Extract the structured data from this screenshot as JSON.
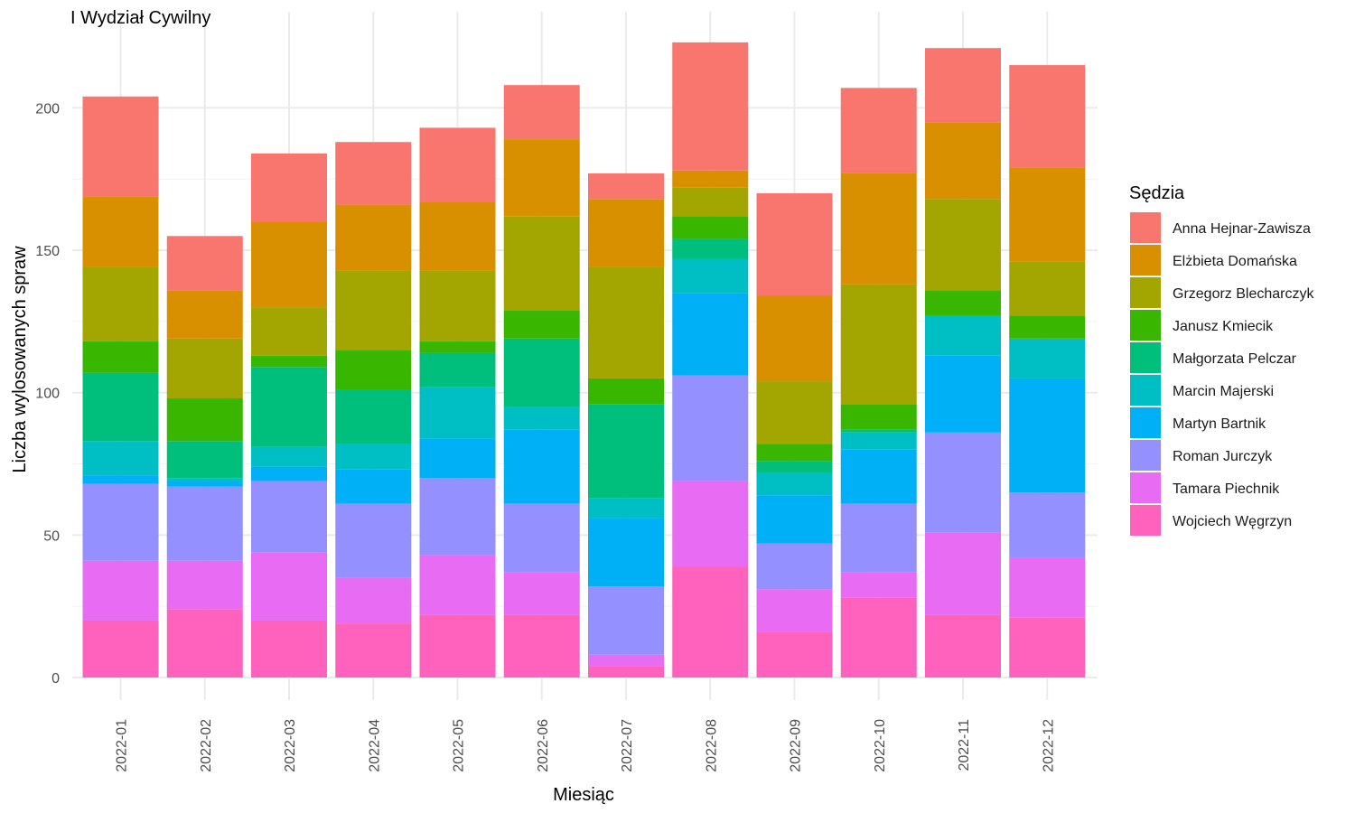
{
  "chart_data": {
    "type": "bar",
    "stacked": true,
    "title": "I Wydział Cywilny",
    "xlabel": "Miesiąc",
    "ylabel": "Liczba wylosowanych spraw",
    "ylim": [
      0,
      223
    ],
    "yticks": [
      0,
      50,
      100,
      150,
      200
    ],
    "grid": true,
    "legend_title": "Sędzia",
    "legend_position": "right",
    "categories": [
      "2022-01",
      "2022-02",
      "2022-03",
      "2022-04",
      "2022-05",
      "2022-06",
      "2022-07",
      "2022-08",
      "2022-09",
      "2022-10",
      "2022-11",
      "2022-12"
    ],
    "series": [
      {
        "name": "Anna Hejnar-Zawisza",
        "color": "#F8766D",
        "values": [
          35,
          19,
          24,
          22,
          26,
          19,
          9,
          45,
          36,
          30,
          26,
          36
        ]
      },
      {
        "name": "Elżbieta Domańska",
        "color": "#D89000",
        "values": [
          25,
          17,
          30,
          23,
          24,
          27,
          24,
          6,
          30,
          39,
          27,
          33
        ]
      },
      {
        "name": "Grzegorz Blecharczyk",
        "color": "#A3A500",
        "values": [
          26,
          21,
          17,
          28,
          25,
          33,
          39,
          10,
          22,
          42,
          32,
          19
        ]
      },
      {
        "name": "Janusz Kmiecik",
        "color": "#39B600",
        "values": [
          11,
          15,
          4,
          14,
          4,
          10,
          9,
          8,
          6,
          9,
          9,
          8
        ]
      },
      {
        "name": "Małgorzata Pelczar",
        "color": "#00BF7D",
        "values": [
          24,
          13,
          28,
          19,
          12,
          24,
          33,
          7,
          4,
          1,
          0,
          0
        ]
      },
      {
        "name": "Marcin Majerski",
        "color": "#00BFC4",
        "values": [
          12,
          1,
          7,
          9,
          18,
          8,
          7,
          12,
          8,
          6,
          14,
          14
        ]
      },
      {
        "name": "Martyn Bartnik",
        "color": "#00B0F6",
        "values": [
          3,
          2,
          5,
          12,
          14,
          26,
          24,
          29,
          17,
          19,
          27,
          40
        ]
      },
      {
        "name": "Roman Jurczyk",
        "color": "#9590FF",
        "values": [
          27,
          26,
          25,
          26,
          27,
          24,
          24,
          37,
          16,
          24,
          35,
          23
        ]
      },
      {
        "name": "Tamara Piechnik",
        "color": "#E76BF3",
        "values": [
          21,
          17,
          24,
          16,
          21,
          15,
          4,
          30,
          15,
          9,
          29,
          21
        ]
      },
      {
        "name": "Wojciech Węgrzyn",
        "color": "#FF62BC",
        "values": [
          20,
          24,
          20,
          19,
          22,
          22,
          4,
          39,
          16,
          28,
          22,
          21
        ]
      }
    ]
  }
}
